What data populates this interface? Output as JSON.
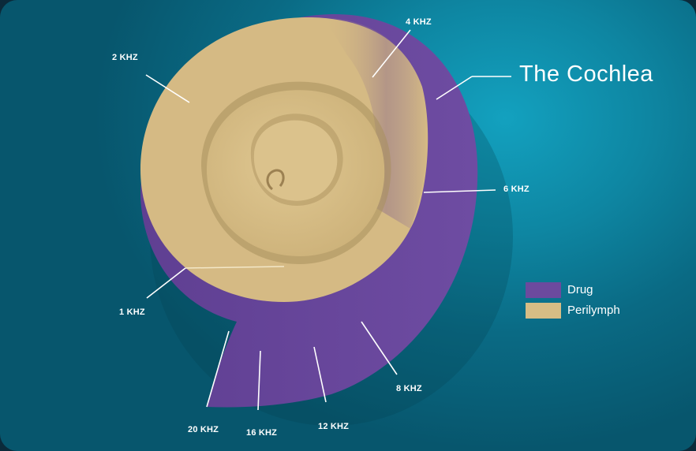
{
  "diagram": {
    "title": "The Cochlea",
    "frequency_labels": {
      "f4": "4 KHZ",
      "f2": "2 KHZ",
      "f6": "6 KHZ",
      "f1": "1 KHZ",
      "f8": "8 KHZ",
      "f20": "20 KHZ",
      "f16": "16 KHZ",
      "f12": "12 KHZ"
    },
    "legend": [
      {
        "label": "Drug",
        "color": "#6c4a9e"
      },
      {
        "label": "Perilymph",
        "color": "#d7bd85"
      }
    ],
    "colors": {
      "drug": "#6c4a9e",
      "perilymph": "#d7bd85",
      "background": "#0e86a2"
    }
  }
}
